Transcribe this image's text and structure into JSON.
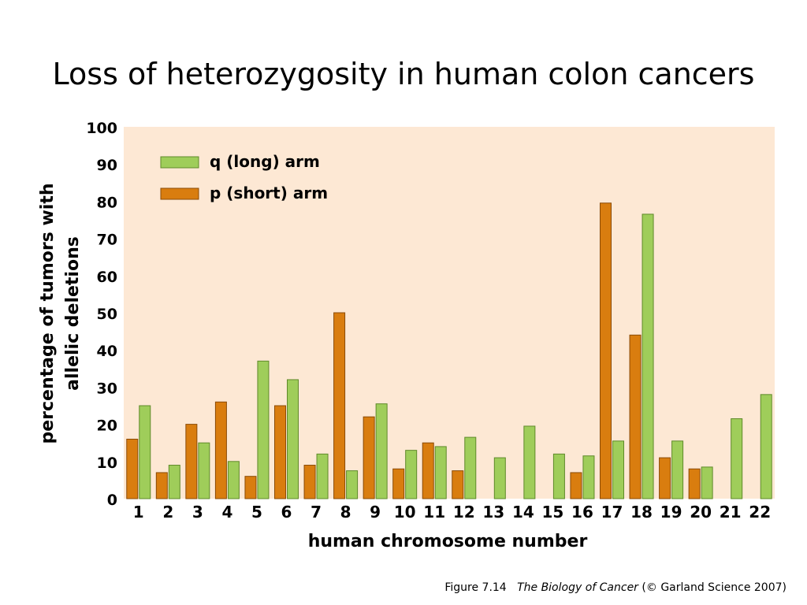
{
  "slide": {
    "title": "Loss of heterozygosity in human colon cancers"
  },
  "caption": {
    "figure": "Figure 7.14",
    "book": "The Biology of Cancer",
    "credit": "(© Garland Science 2007)"
  },
  "chart_data": {
    "type": "bar",
    "title": "",
    "xlabel": "human chromosome number",
    "ylabel_lines": [
      "percentage of tumors with",
      "allelic deletions"
    ],
    "ylim": [
      0,
      100
    ],
    "yticks": [
      0,
      10,
      20,
      30,
      40,
      50,
      60,
      70,
      80,
      90,
      100
    ],
    "categories": [
      "1",
      "2",
      "3",
      "4",
      "5",
      "6",
      "7",
      "8",
      "9",
      "10",
      "11",
      "12",
      "13",
      "14",
      "15",
      "16",
      "17",
      "18",
      "19",
      "20",
      "21",
      "22"
    ],
    "series": [
      {
        "name": "p (short) arm",
        "color": "#d97d0f",
        "values": [
          16,
          7,
          20,
          26,
          6,
          25,
          9,
          50,
          22,
          8,
          15,
          7.5,
          null,
          null,
          null,
          7,
          79.5,
          44,
          11,
          8,
          null,
          null
        ]
      },
      {
        "name": "q (long) arm",
        "color": "#9fcd5a",
        "values": [
          25,
          9,
          15,
          10,
          37,
          32,
          12,
          7.5,
          25.5,
          13,
          14,
          16.5,
          11,
          19.5,
          12,
          11.5,
          15.5,
          76.5,
          15.5,
          8.5,
          21.5,
          28
        ]
      }
    ],
    "legend_order": [
      "q (long) arm",
      "p (short) arm"
    ],
    "legend_position": "top-left",
    "background_color": "#fde8d4",
    "grid": false
  }
}
